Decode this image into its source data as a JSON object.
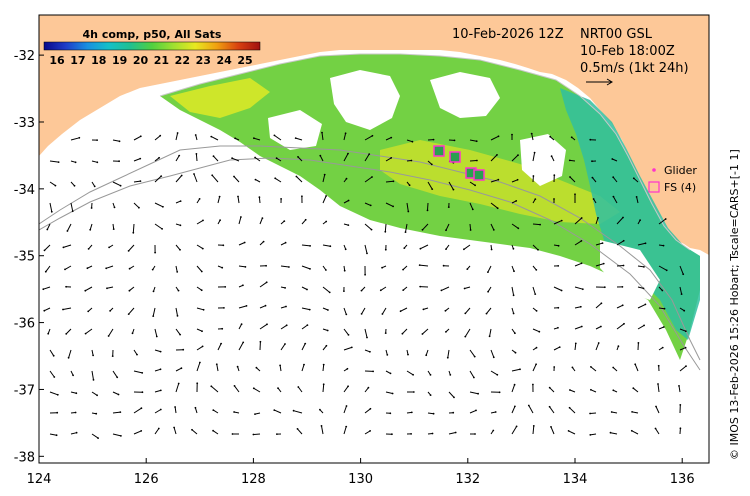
{
  "title_box": {
    "product": "4h comp, p50, All Sats",
    "colorbar_ticks": [
      "16",
      "17",
      "18",
      "19",
      "20",
      "21",
      "22",
      "23",
      "24",
      "25"
    ]
  },
  "info": {
    "composite_date": "10-Feb-2026 12Z",
    "current_product": "NRT00 GSL",
    "current_time": "10-Feb 18:00Z",
    "velocity_scale": "0.5m/s (1kt 24h)"
  },
  "legend": {
    "glider_label": "Glider",
    "fs_label": "FS (4)",
    "glider_color": "#ff33cc",
    "fs_color": "#ff33cc"
  },
  "credit": "© IMOS 13-Feb-2026 15:26 Hobart; Tscale=CARS+[-1 1]",
  "axes": {
    "x_ticks": [
      "124",
      "126",
      "128",
      "130",
      "132",
      "134",
      "136"
    ],
    "y_ticks": [
      "-32",
      "-33",
      "-34",
      "-35",
      "-36",
      "-37",
      "-38"
    ],
    "lon_range": [
      124,
      136.5
    ],
    "lat_range": [
      -38.1,
      -31.4
    ]
  },
  "colors": {
    "land": "#fdc898",
    "sst_scale": [
      "#08088a",
      "#1f3cc8",
      "#1a8fe0",
      "#15c0c8",
      "#20c090",
      "#50d040",
      "#a0e030",
      "#e8e820",
      "#f0a010",
      "#d84010",
      "#a01010"
    ]
  }
}
